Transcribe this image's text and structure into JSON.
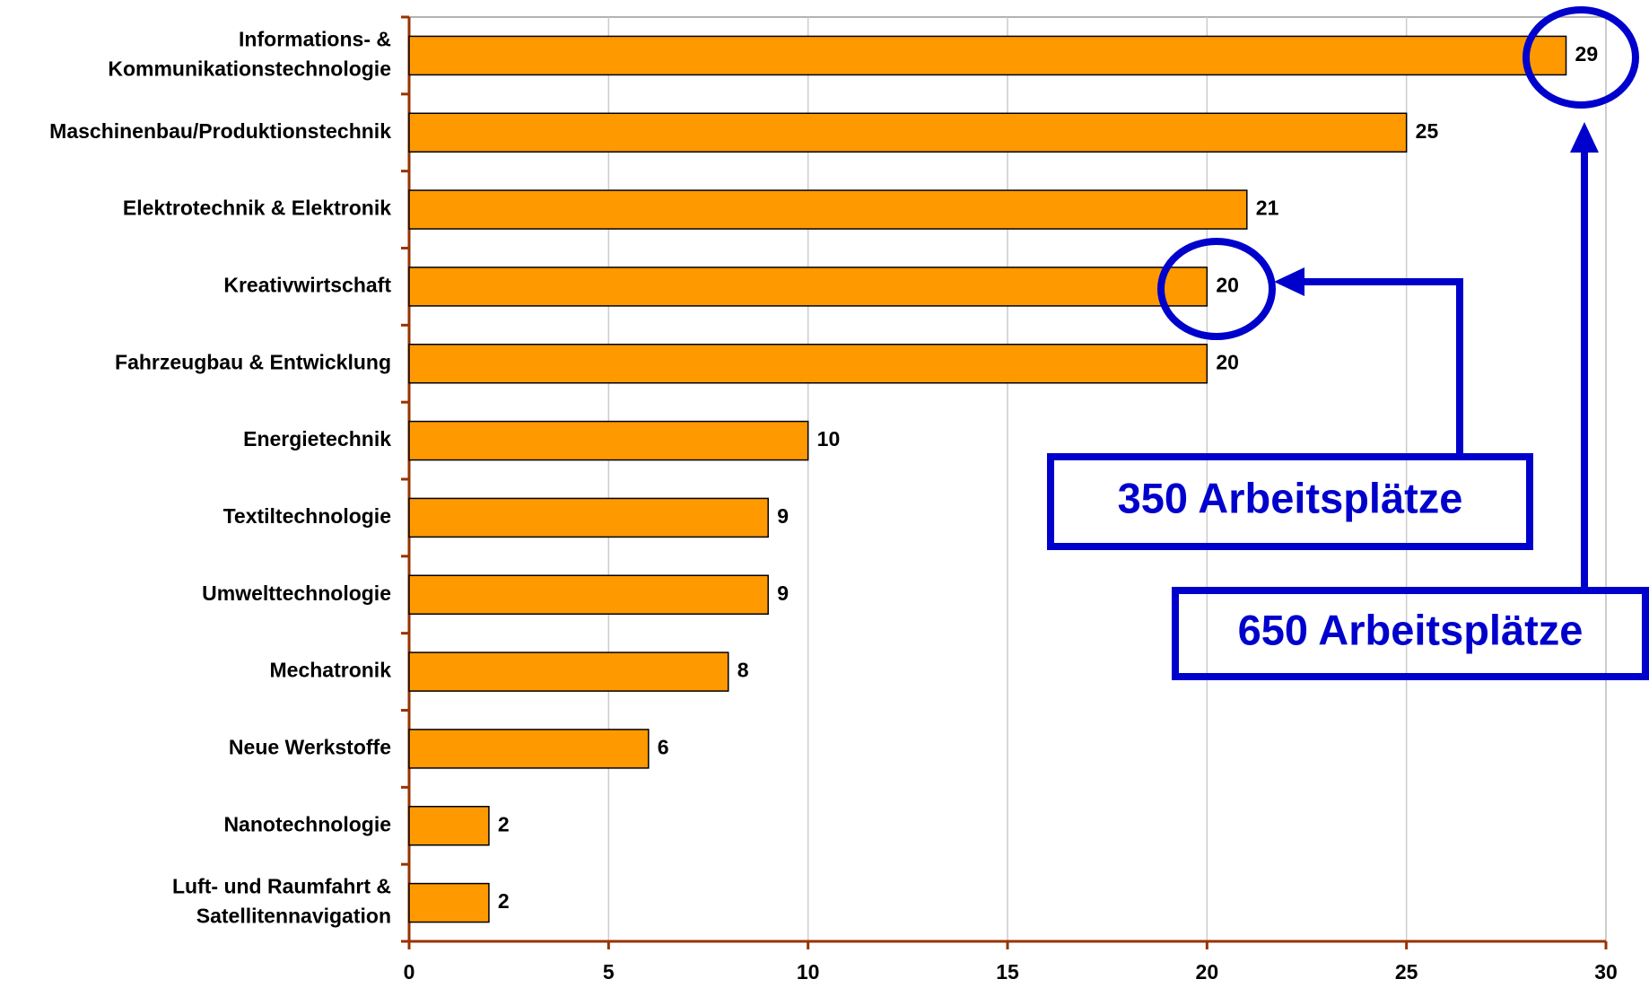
{
  "chart_data": {
    "type": "bar",
    "orientation": "horizontal",
    "categories": [
      [
        "Informations- &",
        "Kommunikationstechnologie"
      ],
      [
        "Maschinenbau/Produktionstechnik"
      ],
      [
        "Elektrotechnik & Elektronik"
      ],
      [
        "Kreativwirtschaft"
      ],
      [
        "Fahrzeugbau & Entwicklung"
      ],
      [
        "Energietechnik"
      ],
      [
        "Textiltechnologie"
      ],
      [
        "Umwelttechnologie"
      ],
      [
        "Mechatronik"
      ],
      [
        "Neue Werkstoffe"
      ],
      [
        "Nanotechnologie"
      ],
      [
        "Luft- und Raumfahrt &",
        "Satellitennavigation"
      ]
    ],
    "values": [
      29,
      25,
      21,
      20,
      20,
      10,
      9,
      9,
      8,
      6,
      2,
      2
    ],
    "color": "#ff9900",
    "xlim": [
      0,
      30
    ],
    "xticks": [
      0,
      5,
      10,
      15,
      20,
      25,
      30
    ],
    "grid": true,
    "annotations": [
      "350 Arbeitsplätze",
      "650 Arbeitsplätze"
    ]
  }
}
